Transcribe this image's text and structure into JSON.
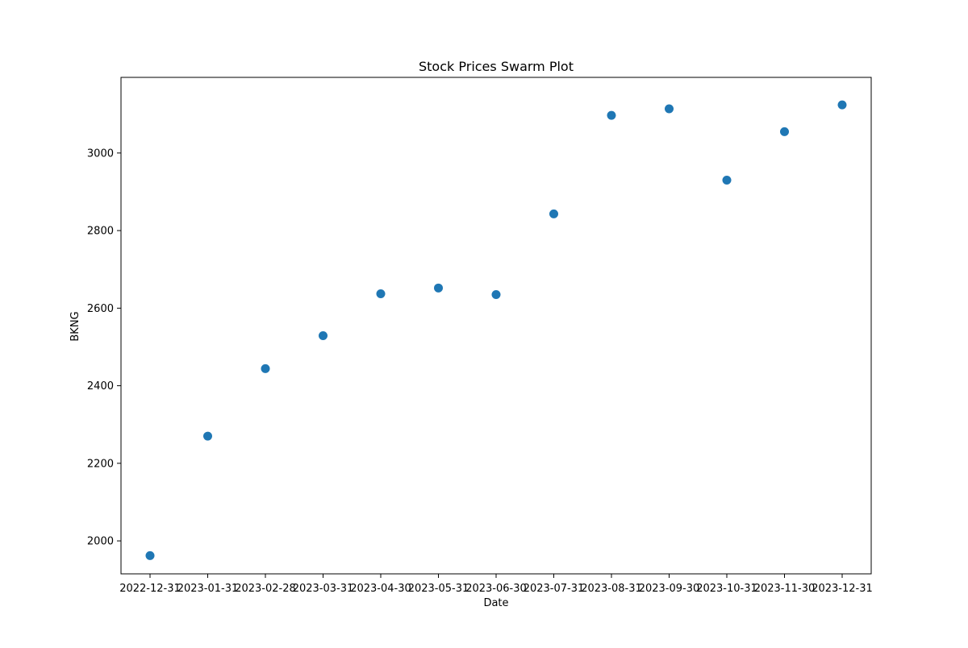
{
  "chart_data": {
    "type": "scatter",
    "title": "Stock Prices Swarm Plot",
    "xlabel": "Date",
    "ylabel": "BKNG",
    "x_tick_labels": [
      "2022-12-31",
      "2023-01-31",
      "2023-02-28",
      "2023-03-31",
      "2023-04-30",
      "2023-05-31",
      "2023-06-30",
      "2023-07-31",
      "2023-08-31",
      "2023-09-30",
      "2023-10-31",
      "2023-11-30",
      "2023-12-31"
    ],
    "y_ticks": [
      2000,
      2200,
      2400,
      2600,
      2800,
      3000
    ],
    "ylim": [
      1915,
      3195
    ],
    "grid": false,
    "legend": false,
    "series": [
      {
        "color": "#1f77b4",
        "points": [
          {
            "x": "2022-12-31",
            "y": 1962
          },
          {
            "x": "2023-01-31",
            "y": 2270
          },
          {
            "x": "2023-02-28",
            "y": 2444
          },
          {
            "x": "2023-03-31",
            "y": 2529
          },
          {
            "x": "2023-04-30",
            "y": 2637
          },
          {
            "x": "2023-05-31",
            "y": 2652
          },
          {
            "x": "2023-06-30",
            "y": 2635
          },
          {
            "x": "2023-07-31",
            "y": 2843
          },
          {
            "x": "2023-08-31",
            "y": 3097
          },
          {
            "x": "2023-09-30",
            "y": 3114
          },
          {
            "x": "2023-10-31",
            "y": 2930
          },
          {
            "x": "2023-11-30",
            "y": 3055
          },
          {
            "x": "2023-12-31",
            "y": 3124
          }
        ]
      }
    ]
  }
}
